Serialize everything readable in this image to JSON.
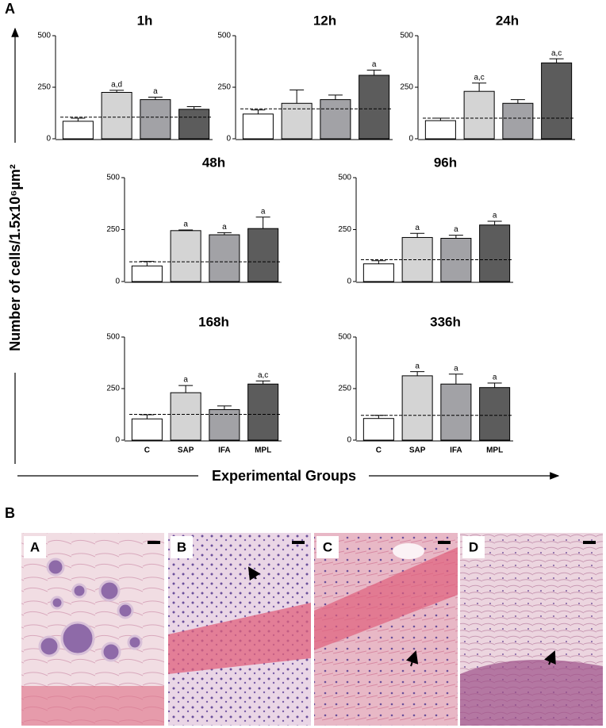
{
  "figure": {
    "panel_a": "A",
    "panel_b": "B",
    "y_axis_label": "Number of cells/1.5x10⁶µm²",
    "x_axis_label": "Experimental Groups",
    "images": [
      "A",
      "B",
      "C",
      "D"
    ]
  },
  "chart_data": [
    {
      "type": "bar",
      "title": "1h",
      "categories": [
        null,
        null,
        null,
        null
      ],
      "values": [
        85,
        225,
        190,
        143
      ],
      "errors": [
        15,
        10,
        12,
        13
      ],
      "annotations": [
        null,
        "a,d",
        "a",
        null
      ],
      "colors": [
        "#ffffff",
        "#d4d4d4",
        "#a2a2a6",
        "#5c5c5c"
      ],
      "reference_line": 105,
      "ylim": [
        0,
        500
      ],
      "yticks": [
        0,
        250,
        500
      ]
    },
    {
      "type": "bar",
      "title": "12h",
      "categories": [
        null,
        null,
        null,
        null
      ],
      "values": [
        120,
        172,
        190,
        308
      ],
      "errors": [
        20,
        65,
        22,
        25
      ],
      "annotations": [
        null,
        null,
        null,
        "a"
      ],
      "colors": [
        "#ffffff",
        "#d4d4d4",
        "#a2a2a6",
        "#5c5c5c"
      ],
      "reference_line": 145,
      "ylim": [
        0,
        500
      ],
      "yticks": [
        0,
        250,
        500
      ]
    },
    {
      "type": "bar",
      "title": "24h",
      "categories": [
        null,
        null,
        null,
        null
      ],
      "values": [
        88,
        230,
        172,
        368
      ],
      "errors": [
        12,
        40,
        18,
        20
      ],
      "annotations": [
        null,
        "a,c",
        null,
        "a,c"
      ],
      "colors": [
        "#ffffff",
        "#d4d4d4",
        "#a2a2a6",
        "#5c5c5c"
      ],
      "reference_line": 100,
      "ylim": [
        0,
        500
      ],
      "yticks": [
        0,
        250,
        500
      ]
    },
    {
      "type": "bar",
      "title": "48h",
      "categories": [
        null,
        null,
        null,
        null
      ],
      "values": [
        75,
        245,
        225,
        255
      ],
      "errors": [
        22,
        3,
        10,
        55
      ],
      "annotations": [
        null,
        "a",
        "a",
        "a"
      ],
      "colors": [
        "#ffffff",
        "#d4d4d4",
        "#a2a2a6",
        "#5c5c5c"
      ],
      "reference_line": 95,
      "ylim": [
        0,
        500
      ],
      "yticks": [
        0,
        250,
        500
      ]
    },
    {
      "type": "bar",
      "title": "96h",
      "categories": [
        null,
        null,
        null,
        null
      ],
      "values": [
        85,
        212,
        208,
        272
      ],
      "errors": [
        15,
        20,
        15,
        18
      ],
      "annotations": [
        null,
        "a",
        "a",
        "a"
      ],
      "colors": [
        "#ffffff",
        "#d4d4d4",
        "#a2a2a6",
        "#5c5c5c"
      ],
      "reference_line": 105,
      "ylim": [
        0,
        500
      ],
      "yticks": [
        0,
        250,
        500
      ]
    },
    {
      "type": "bar",
      "title": "168h",
      "categories": [
        "C",
        "SAP",
        "IFA",
        "MPL"
      ],
      "values": [
        103,
        230,
        148,
        272
      ],
      "errors": [
        20,
        35,
        18,
        15
      ],
      "annotations": [
        null,
        "a",
        null,
        "a,c"
      ],
      "colors": [
        "#ffffff",
        "#d4d4d4",
        "#a2a2a6",
        "#5c5c5c"
      ],
      "reference_line": 125,
      "ylim": [
        0,
        500
      ],
      "yticks": [
        0,
        250,
        500
      ]
    },
    {
      "type": "bar",
      "title": "336h",
      "categories": [
        "C",
        "SAP",
        "IFA",
        "MPL"
      ],
      "values": [
        105,
        312,
        272,
        255
      ],
      "errors": [
        15,
        20,
        48,
        22
      ],
      "annotations": [
        null,
        "a",
        "a",
        "a"
      ],
      "colors": [
        "#ffffff",
        "#d4d4d4",
        "#a2a2a6",
        "#5c5c5c"
      ],
      "reference_line": 120,
      "ylim": [
        0,
        500
      ],
      "yticks": [
        0,
        250,
        500
      ]
    }
  ]
}
